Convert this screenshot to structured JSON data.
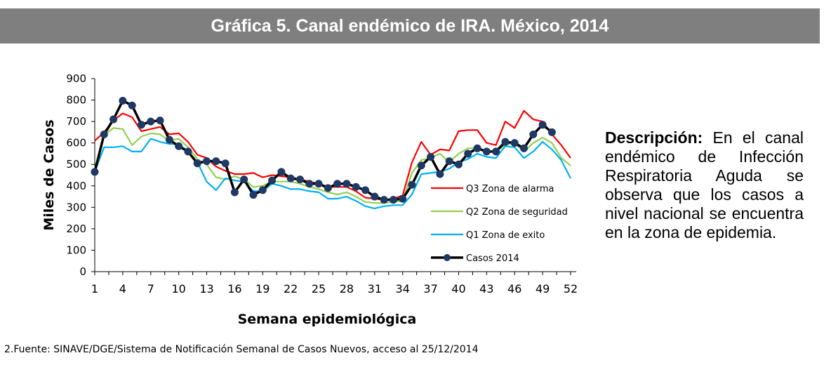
{
  "header": {
    "title": "Gráfica 5. Canal endémico de IRA.  México, 2014"
  },
  "description": {
    "label": "Descripción:",
    "text": "En el canal endémico de Infección Respiratoria Aguda se observa que los casos a nivel nacional se encuentra en la zona de epidemia."
  },
  "source": {
    "text": "2.Fuente: SINAVE/DGE/Sistema de Notificación Semanal de Casos Nuevos, acceso al 25/12/2014"
  },
  "chart_data": {
    "type": "line",
    "title": "",
    "xlabel": "Semana epidemiológica",
    "ylabel": "Miles de Casos",
    "ylim": [
      0,
      900
    ],
    "yticks": [
      0,
      100,
      200,
      300,
      400,
      500,
      600,
      700,
      800,
      900
    ],
    "xticks": [
      1,
      4,
      7,
      10,
      13,
      16,
      19,
      22,
      25,
      28,
      31,
      34,
      37,
      40,
      43,
      46,
      49,
      52
    ],
    "x": [
      1,
      2,
      3,
      4,
      5,
      6,
      7,
      8,
      9,
      10,
      11,
      12,
      13,
      14,
      15,
      16,
      17,
      18,
      19,
      20,
      21,
      22,
      23,
      24,
      25,
      26,
      27,
      28,
      29,
      30,
      31,
      32,
      33,
      34,
      35,
      36,
      37,
      38,
      39,
      40,
      41,
      42,
      43,
      44,
      45,
      46,
      47,
      48,
      49,
      50,
      51,
      52
    ],
    "legend_position": "right-inside",
    "series": [
      {
        "name": "Q3 Zona de alarma",
        "color": "#ff0000",
        "marker": false,
        "values": [
          610,
          650,
          705,
          738,
          720,
          655,
          665,
          675,
          640,
          645,
          605,
          545,
          530,
          490,
          470,
          455,
          455,
          460,
          440,
          450,
          445,
          440,
          430,
          420,
          410,
          395,
          395,
          395,
          375,
          345,
          340,
          335,
          340,
          355,
          510,
          605,
          545,
          570,
          565,
          655,
          660,
          660,
          600,
          590,
          700,
          670,
          750,
          710,
          700,
          640,
          590,
          530
        ]
      },
      {
        "name": "Q2 Zona de seguridad",
        "color": "#92d050",
        "marker": false,
        "values": [
          480,
          635,
          670,
          665,
          590,
          630,
          645,
          640,
          610,
          620,
          580,
          525,
          500,
          440,
          430,
          445,
          430,
          395,
          400,
          420,
          420,
          420,
          410,
          395,
          385,
          370,
          360,
          370,
          350,
          325,
          320,
          320,
          325,
          330,
          460,
          520,
          530,
          550,
          510,
          550,
          575,
          575,
          555,
          560,
          590,
          600,
          560,
          600,
          625,
          600,
          530,
          495
        ]
      },
      {
        "name": "Q1 Zona de exito",
        "color": "#00b0f0",
        "marker": false,
        "values": [
          465,
          580,
          580,
          585,
          560,
          560,
          620,
          605,
          595,
          595,
          560,
          510,
          420,
          380,
          435,
          425,
          420,
          375,
          375,
          410,
          400,
          385,
          385,
          375,
          370,
          340,
          340,
          350,
          330,
          305,
          295,
          305,
          310,
          310,
          360,
          455,
          460,
          465,
          480,
          510,
          525,
          550,
          535,
          530,
          585,
          580,
          530,
          560,
          605,
          570,
          520,
          435
        ]
      },
      {
        "name": "Casos 2014",
        "color": "#000000",
        "marker": true,
        "values": [
          465,
          640,
          710,
          797,
          775,
          685,
          700,
          705,
          615,
          585,
          560,
          505,
          515,
          515,
          505,
          370,
          430,
          358,
          380,
          425,
          465,
          435,
          430,
          410,
          410,
          390,
          410,
          410,
          395,
          380,
          350,
          335,
          335,
          340,
          405,
          495,
          535,
          455,
          515,
          500,
          550,
          575,
          560,
          560,
          605,
          600,
          575,
          640,
          685,
          650,
          null,
          null
        ]
      }
    ]
  }
}
